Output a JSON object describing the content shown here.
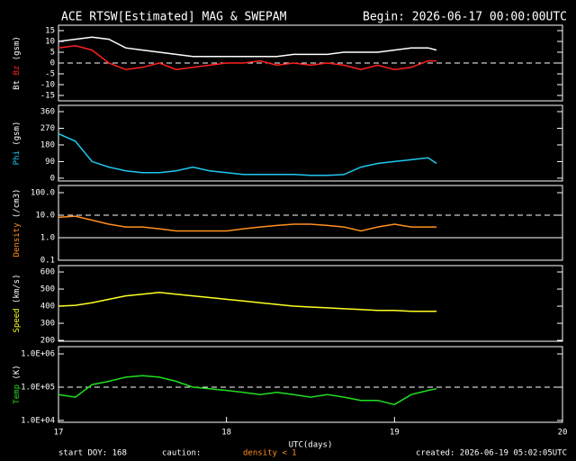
{
  "header": {
    "title": "ACE RTSW[Estimated] MAG & SWEPAM",
    "begin": "Begin: 2026-06-17 00:00:00UTC"
  },
  "footer": {
    "start": "start DOY: 168",
    "caution": "caution:",
    "density_note": "density < 1",
    "created": "created: 2026-06-19 05:02:05UTC"
  },
  "chart_data": [
    {
      "type": "line",
      "ylabel": [
        {
          "text": "Bt",
          "color": "#ffffff"
        },
        {
          "text": "Bz",
          "color": "#ff2020"
        },
        {
          "text": "(gsm)",
          "color": "#ffffff"
        }
      ],
      "x": [
        17.0,
        17.1,
        17.2,
        17.3,
        17.4,
        17.5,
        17.6,
        17.7,
        17.8,
        17.9,
        18.0,
        18.1,
        18.2,
        18.3,
        18.4,
        18.5,
        18.6,
        18.7,
        18.8,
        18.9,
        19.0,
        19.1,
        19.2,
        19.25
      ],
      "xlim": [
        17,
        20
      ],
      "ylim": [
        -17.5,
        17.5
      ],
      "yticks": [
        15,
        10,
        5,
        0,
        -5,
        -10,
        -15
      ],
      "ref_lines": [
        {
          "value": 0,
          "style": "dashed"
        }
      ],
      "series": [
        {
          "name": "Bt",
          "color": "#ffffff",
          "values": [
            10,
            11,
            12,
            11,
            7,
            6,
            5,
            4,
            3,
            3,
            3,
            3,
            3,
            3,
            4,
            4,
            4,
            5,
            5,
            5,
            6,
            7,
            7,
            6
          ]
        },
        {
          "name": "Bz",
          "color": "#ff2020",
          "values": [
            7,
            8,
            6,
            0,
            -3,
            -2,
            0,
            -3,
            -2,
            -1,
            0,
            0,
            1,
            -1,
            0,
            -1,
            0,
            -1,
            -3,
            -1,
            -3,
            -2,
            1,
            1
          ]
        }
      ]
    },
    {
      "type": "line",
      "ylabel": [
        {
          "text": "Phi",
          "color": "#20c8f0"
        },
        {
          "text": "(gsm)",
          "color": "#ffffff"
        }
      ],
      "x": [
        17.0,
        17.1,
        17.2,
        17.3,
        17.4,
        17.5,
        17.6,
        17.7,
        17.8,
        17.9,
        18.0,
        18.1,
        18.2,
        18.3,
        18.4,
        18.5,
        18.6,
        18.7,
        18.8,
        18.9,
        19.0,
        19.1,
        19.2,
        19.25
      ],
      "xlim": [
        17,
        20
      ],
      "ylim": [
        -15,
        394
      ],
      "yticks": [
        360,
        270,
        180,
        90,
        0
      ],
      "series": [
        {
          "name": "Phi",
          "color": "#20c8f0",
          "values": [
            240,
            200,
            90,
            60,
            40,
            30,
            30,
            40,
            60,
            40,
            30,
            20,
            20,
            20,
            20,
            15,
            15,
            20,
            60,
            80,
            90,
            100,
            110,
            80
          ]
        }
      ]
    },
    {
      "type": "line",
      "log": true,
      "ylabel": [
        {
          "text": "Density",
          "color": "#ff9020"
        },
        {
          "text": "(/cm3)",
          "color": "#ffffff"
        }
      ],
      "x": [
        17.0,
        17.1,
        17.2,
        17.3,
        17.4,
        17.5,
        17.6,
        17.7,
        17.8,
        17.9,
        18.0,
        18.1,
        18.2,
        18.3,
        18.4,
        18.5,
        18.6,
        18.7,
        18.8,
        18.9,
        19.0,
        19.1,
        19.2,
        19.25
      ],
      "xlim": [
        17,
        20
      ],
      "ylim": [
        0.1,
        209
      ],
      "yticks": [
        {
          "value": 100,
          "label": "100.0"
        },
        {
          "value": 10,
          "label": "10.0"
        },
        {
          "value": 1,
          "label": "1.0"
        },
        {
          "value": 0.1,
          "label": "0.1"
        }
      ],
      "ref_lines": [
        {
          "value": 10,
          "style": "dashed"
        },
        {
          "value": 1,
          "style": "solid"
        }
      ],
      "series": [
        {
          "name": "Density",
          "color": "#ff9020",
          "values": [
            8,
            9,
            6,
            4,
            3,
            3,
            2.5,
            2,
            2,
            2,
            2,
            2.5,
            3,
            3.5,
            4,
            4,
            3.5,
            3,
            2,
            3,
            4,
            3,
            3,
            3
          ]
        }
      ]
    },
    {
      "type": "line",
      "ylabel": [
        {
          "text": "Speed",
          "color": "#ffff20"
        },
        {
          "text": "(km/s)",
          "color": "#ffffff"
        }
      ],
      "x": [
        17.0,
        17.1,
        17.2,
        17.3,
        17.4,
        17.5,
        17.6,
        17.7,
        17.8,
        17.9,
        18.0,
        18.1,
        18.2,
        18.3,
        18.4,
        18.5,
        18.6,
        18.7,
        18.8,
        18.9,
        19.0,
        19.1,
        19.2,
        19.25
      ],
      "xlim": [
        17,
        20
      ],
      "ylim": [
        195,
        637
      ],
      "yticks": [
        600,
        500,
        400,
        300,
        200
      ],
      "series": [
        {
          "name": "Speed",
          "color": "#ffff20",
          "values": [
            400,
            405,
            420,
            440,
            460,
            470,
            480,
            470,
            460,
            450,
            440,
            430,
            420,
            410,
            400,
            395,
            390,
            385,
            380,
            375,
            375,
            370,
            370,
            370
          ]
        }
      ]
    },
    {
      "type": "line",
      "log": true,
      "ylabel": [
        {
          "text": "Temp",
          "color": "#20e020"
        },
        {
          "text": "(K)",
          "color": "#ffffff"
        }
      ],
      "x": [
        17.0,
        17.1,
        17.2,
        17.3,
        17.4,
        17.5,
        17.6,
        17.7,
        17.8,
        17.9,
        18.0,
        18.1,
        18.2,
        18.3,
        18.4,
        18.5,
        18.6,
        18.7,
        18.8,
        18.9,
        19.0,
        19.1,
        19.2,
        19.25
      ],
      "xlim": [
        17,
        20
      ],
      "ylim": [
        8800,
        1650000
      ],
      "yticks": [
        {
          "value": 1000000,
          "label": "1.0E+06"
        },
        {
          "value": 100000,
          "label": "1.0E+05"
        },
        {
          "value": 10000,
          "label": "1.0E+04"
        }
      ],
      "ref_lines": [
        {
          "value": 100000,
          "style": "dashed"
        }
      ],
      "xlabel": "UTC(days)",
      "xticks": [
        17,
        18,
        19,
        20
      ],
      "series": [
        {
          "name": "Temp",
          "color": "#20e020",
          "values": [
            60000,
            50000,
            120000,
            150000,
            200000,
            220000,
            200000,
            150000,
            100000,
            90000,
            80000,
            70000,
            60000,
            70000,
            60000,
            50000,
            60000,
            50000,
            40000,
            40000,
            30000,
            60000,
            80000,
            90000
          ]
        }
      ]
    }
  ]
}
